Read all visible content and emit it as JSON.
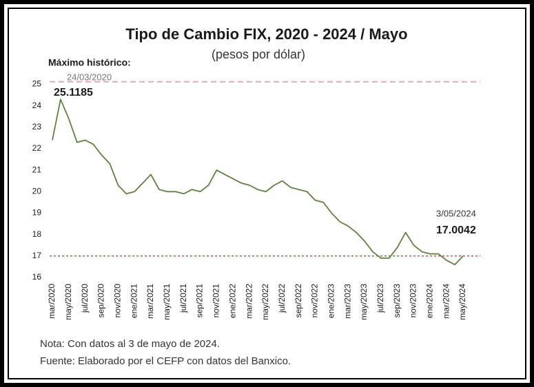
{
  "chart_data": {
    "type": "line",
    "title": "Tipo de Cambio FIX, 2020 - 2024 / Mayo",
    "subtitle": "(pesos por dólar)",
    "categories": [
      "mar/2020",
      null,
      "may/2020",
      null,
      "jul/2020",
      null,
      "sep/2020",
      null,
      "nov/2020",
      null,
      "ene/2021",
      null,
      "mar/2021",
      null,
      "may/2021",
      null,
      "jul/2021",
      null,
      "sep/2021",
      null,
      "nov/2021",
      null,
      "ene/2022",
      null,
      "mar/2022",
      null,
      "may/2022",
      null,
      "jul/2022",
      null,
      "sep/2022",
      null,
      "nov/2022",
      null,
      "ene/2023",
      null,
      "mar/2023",
      null,
      "may/2023",
      null,
      "jul/2023",
      null,
      "sep/2023",
      null,
      "nov/2023",
      null,
      "ene/2024",
      null,
      "mar/2024",
      null,
      "may/2024"
    ],
    "series": [
      {
        "color": "#5f8040",
        "values": [
          22.4,
          24.3,
          23.4,
          22.3,
          22.4,
          22.2,
          21.7,
          21.3,
          20.3,
          19.9,
          20.0,
          20.4,
          20.8,
          20.1,
          20.0,
          20.0,
          19.9,
          20.1,
          20.0,
          20.3,
          21.0,
          20.8,
          20.6,
          20.4,
          20.3,
          20.1,
          20.0,
          20.3,
          20.5,
          20.2,
          20.1,
          20.0,
          19.6,
          19.5,
          19.0,
          18.6,
          18.4,
          18.1,
          17.7,
          17.2,
          16.9,
          16.9,
          17.4,
          18.1,
          17.5,
          17.2,
          17.1,
          17.1,
          16.8,
          16.6,
          17.0
        ]
      }
    ],
    "ylim": [
      16,
      25.4
    ],
    "yticks": [
      16,
      17,
      18,
      19,
      20,
      21,
      22,
      23,
      24,
      25
    ],
    "reference_lines": [
      {
        "value": 25.1185,
        "color": "#f2a3ab",
        "heading": "Máximo histórico:",
        "date": "24/03/2020"
      },
      {
        "value": 17.0042,
        "color": "#e03a3a",
        "date": "3/05/2024"
      }
    ],
    "notes": [
      "Nota: Con datos al 3 de mayo de 2024.",
      "Fuente: Elaborado por el CEFP con datos del Banxico."
    ]
  }
}
